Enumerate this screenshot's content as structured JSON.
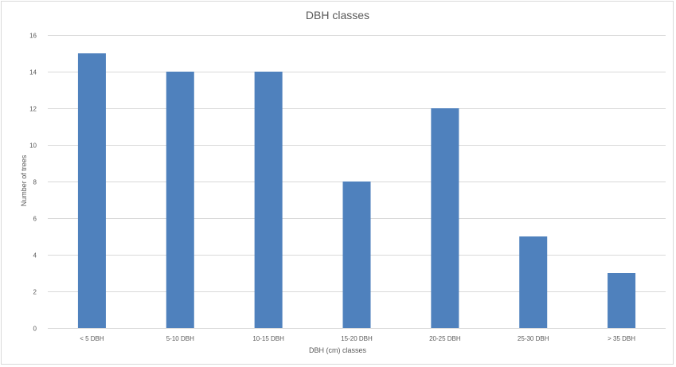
{
  "chart_data": {
    "type": "bar",
    "title": "DBH classes",
    "xlabel": "DBH (cm) classes",
    "ylabel": "Number of trees",
    "categories": [
      "< 5 DBH",
      "5-10 DBH",
      "10-15 DBH",
      "15-20 DBH",
      "20-25 DBH",
      "25-30 DBH",
      "> 35 DBH"
    ],
    "values": [
      15,
      14,
      14,
      8,
      12,
      5,
      3
    ],
    "ylim": [
      0,
      16
    ],
    "yticks": [
      0,
      2,
      4,
      6,
      8,
      10,
      12,
      14,
      16
    ],
    "grid": true,
    "legend": "none",
    "colors": {
      "bar": "#4f81bd",
      "grid": "#d9d9d9",
      "text": "#595959"
    }
  }
}
